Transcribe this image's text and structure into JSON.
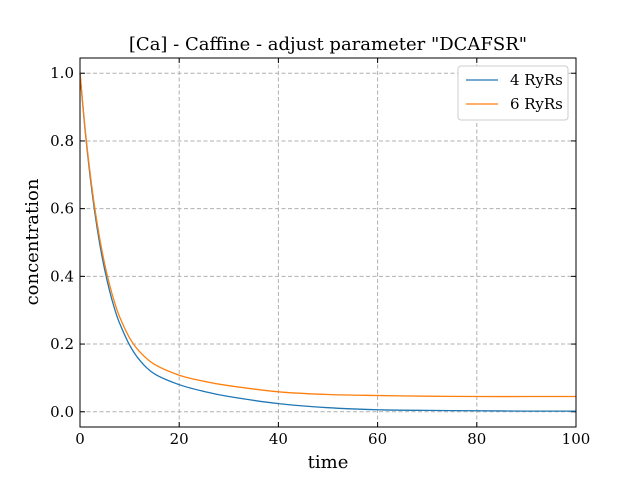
{
  "chart_data": {
    "type": "line",
    "title": "[Ca] - Caffine - adjust parameter \"DCAFSR\"",
    "xlabel": "time",
    "ylabel": "concentration",
    "xlim": [
      0,
      100
    ],
    "ylim": [
      -0.045,
      1.045
    ],
    "xticks": [
      0,
      20,
      40,
      60,
      80,
      100
    ],
    "xtick_labels": [
      "0",
      "20",
      "40",
      "60",
      "80",
      "100"
    ],
    "yticks": [
      0.0,
      0.2,
      0.4,
      0.6,
      0.8,
      1.0
    ],
    "ytick_labels": [
      "0.0",
      "0.2",
      "0.4",
      "0.6",
      "0.8",
      "1.0"
    ],
    "grid": true,
    "legend_position": "top-right",
    "x": [
      0,
      1,
      2,
      3,
      4,
      5,
      6,
      7,
      8,
      10,
      12,
      15,
      20,
      25,
      30,
      40,
      50,
      60,
      70,
      80,
      90,
      100
    ],
    "series": [
      {
        "name": "4 RyRs",
        "color": "#1f77b4",
        "values": [
          1.0,
          0.836,
          0.7,
          0.587,
          0.494,
          0.418,
          0.355,
          0.303,
          0.261,
          0.197,
          0.153,
          0.112,
          0.08,
          0.06,
          0.045,
          0.024,
          0.012,
          0.006,
          0.004,
          0.003,
          0.002,
          0.002
        ]
      },
      {
        "name": "6 RyRs",
        "color": "#ff7f0e",
        "values": [
          1.0,
          0.84,
          0.71,
          0.6,
          0.51,
          0.435,
          0.373,
          0.322,
          0.28,
          0.218,
          0.178,
          0.14,
          0.108,
          0.09,
          0.077,
          0.059,
          0.051,
          0.048,
          0.046,
          0.045,
          0.045,
          0.045
        ]
      }
    ]
  }
}
